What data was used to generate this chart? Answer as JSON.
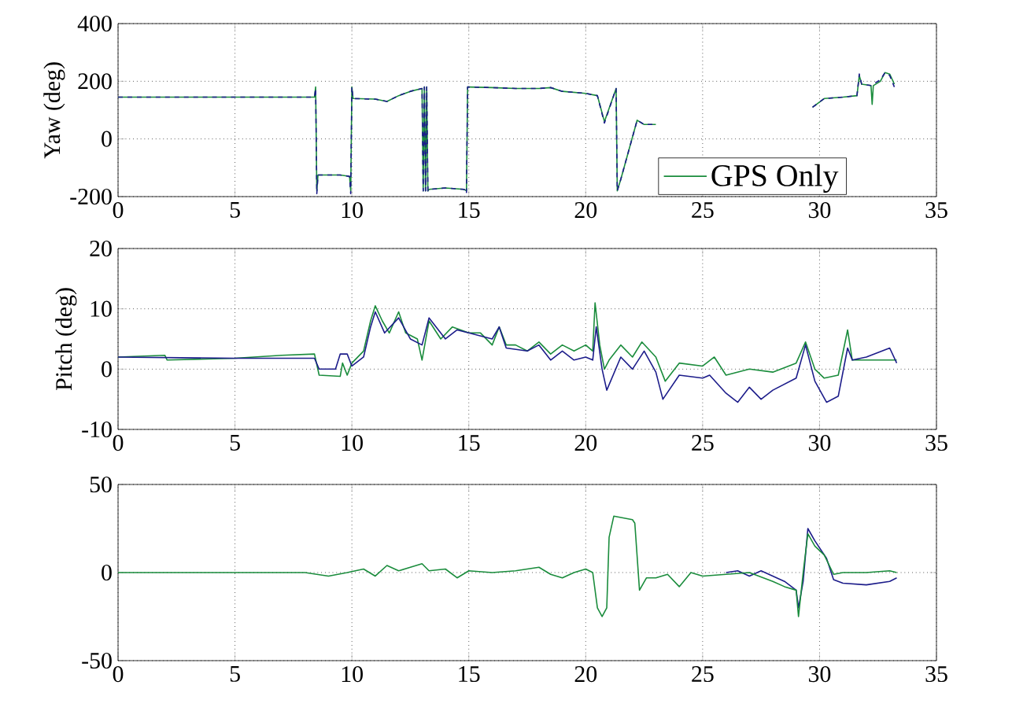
{
  "chart_data": [
    {
      "type": "line",
      "ylabel": "Yaw (deg)",
      "xlim": [
        0,
        35
      ],
      "ylim": [
        -200,
        400
      ],
      "xticks": [
        0,
        5,
        10,
        15,
        20,
        25,
        30,
        35
      ],
      "yticks": [
        -200,
        0,
        200,
        400
      ],
      "grid": true,
      "legend": "bottom right",
      "series": [
        {
          "name": "GPS Only",
          "color": "#1a8c3c",
          "line_style": "solid",
          "x": [
            0,
            8.4,
            8.45,
            8.5,
            8.55,
            9.5,
            9.9,
            9.95,
            10.0,
            10.05,
            11,
            11.5,
            12,
            12.5,
            13.0,
            13.05,
            13.1,
            13.15,
            13.2,
            13.25,
            13.3,
            14,
            14.8,
            14.9,
            14.95,
            15.0,
            16,
            17,
            18,
            18.5,
            19,
            20,
            20.5,
            20.8,
            21.3,
            21.35,
            21.5,
            22.2,
            22.5,
            23.0,
            26,
            29.7,
            30.2,
            31,
            31.6,
            31.7,
            31.8,
            32.2,
            32.25,
            32.3,
            32.6,
            32.8,
            33.0,
            33.2
          ],
          "values": [
            145,
            145,
            180,
            -180,
            -125,
            -125,
            -130,
            -180,
            180,
            140,
            138,
            130,
            150,
            165,
            175,
            -180,
            180,
            -180,
            180,
            -180,
            -175,
            -170,
            -175,
            -180,
            180,
            180,
            178,
            175,
            175,
            178,
            165,
            158,
            150,
            60,
            175,
            -180,
            -140,
            65,
            50,
            50,
            null,
            110,
            140,
            145,
            150,
            220,
            190,
            185,
            120,
            185,
            200,
            230,
            225,
            190
          ]
        },
        {
          "color": "#1c1c8a",
          "line_style": "dashed",
          "x": [
            0,
            8.4,
            8.45,
            8.5,
            8.55,
            9.5,
            9.9,
            9.95,
            10.0,
            10.05,
            11,
            11.5,
            12,
            12.5,
            13.0,
            13.05,
            13.1,
            13.15,
            13.2,
            13.25,
            13.3,
            14,
            14.8,
            14.9,
            14.95,
            15.0,
            16,
            17,
            18,
            18.5,
            19,
            20,
            20.5,
            20.8,
            21.3,
            21.35,
            21.5,
            22.2,
            22.5,
            23.0,
            26,
            29.7,
            30.2,
            31,
            31.6,
            31.7,
            31.8,
            32.2,
            32.6,
            32.8,
            33.0,
            33.2
          ],
          "values": [
            145,
            145,
            175,
            -190,
            -125,
            -125,
            -130,
            -190,
            180,
            140,
            138,
            130,
            150,
            165,
            175,
            -180,
            180,
            -180,
            180,
            -180,
            -175,
            -170,
            -175,
            -190,
            180,
            180,
            178,
            175,
            175,
            178,
            165,
            158,
            150,
            55,
            175,
            -180,
            -140,
            65,
            50,
            50,
            null,
            110,
            140,
            145,
            150,
            225,
            190,
            185,
            205,
            230,
            220,
            180
          ]
        }
      ]
    },
    {
      "type": "line",
      "ylabel": "Pitch (deg)",
      "xlim": [
        0,
        35
      ],
      "ylim": [
        -10,
        20
      ],
      "xticks": [
        0,
        5,
        10,
        15,
        20,
        25,
        30,
        35
      ],
      "yticks": [
        -10,
        0,
        10,
        20
      ],
      "grid": true,
      "series": [
        {
          "color": "#1a8c3c",
          "x": [
            0,
            2,
            2.1,
            5,
            7,
            8.4,
            8.6,
            9.5,
            9.6,
            9.8,
            10,
            10.5,
            10.8,
            11,
            11.3,
            11.6,
            12,
            12.3,
            12.8,
            13,
            13.3,
            13.8,
            14.3,
            15,
            15.5,
            16,
            16.3,
            16.6,
            17,
            17.5,
            18,
            18.5,
            19,
            19.5,
            20,
            20.3,
            20.4,
            20.6,
            20.8,
            21,
            21.5,
            22,
            22.4,
            23,
            23.4,
            24,
            25,
            25.5,
            26,
            27,
            28,
            29,
            29.4,
            29.8,
            30.2,
            30.8,
            31.2,
            31.4,
            32,
            33,
            33.3
          ],
          "values": [
            2,
            2.3,
            1.5,
            1.8,
            2.3,
            2.5,
            -1,
            -1.2,
            1,
            -1,
            1,
            3,
            8,
            10.5,
            8,
            6,
            9.5,
            6,
            5,
            1.5,
            8,
            5,
            7,
            6,
            6,
            4,
            7,
            4,
            4,
            3,
            4.5,
            2.5,
            4,
            3,
            4,
            3,
            11,
            4,
            0,
            1.5,
            4,
            2,
            4.5,
            2,
            -2,
            1,
            0.5,
            2,
            -1,
            0,
            -0.5,
            1,
            4.5,
            0,
            -1.5,
            -1,
            6.5,
            1.5,
            1.5,
            1.5,
            1.5
          ]
        },
        {
          "color": "#1c1c8a",
          "x": [
            0,
            5,
            8.4,
            8.6,
            9.3,
            9.5,
            9.8,
            10,
            10.5,
            10.8,
            11,
            11.4,
            12,
            12.5,
            13,
            13.3,
            14,
            14.5,
            15,
            16,
            16.3,
            16.6,
            17.5,
            18,
            18.5,
            19,
            19.5,
            20,
            20.3,
            20.45,
            20.7,
            20.9,
            21.5,
            22,
            22.5,
            23,
            23.3,
            24,
            25,
            25.3,
            26,
            26.5,
            27,
            27.5,
            28,
            29,
            29.4,
            29.8,
            30.3,
            30.8,
            31.2,
            31.4,
            32,
            33,
            33.3
          ],
          "values": [
            2,
            1.8,
            1.8,
            0,
            0,
            2.5,
            2.5,
            0.5,
            2,
            7,
            9.5,
            6,
            8.5,
            5,
            4,
            8.5,
            5,
            6.5,
            6,
            5,
            7,
            3.5,
            3,
            4,
            1.5,
            3,
            1.5,
            2,
            1.5,
            7,
            0,
            -3.5,
            2,
            0,
            3,
            -0.5,
            -5,
            -1,
            -1.5,
            -1,
            -4,
            -5.5,
            -3,
            -5,
            -3.5,
            -1.5,
            4,
            -2,
            -5.5,
            -4.5,
            3.5,
            1.5,
            2,
            3.5,
            1
          ]
        }
      ]
    },
    {
      "type": "line",
      "xlim": [
        0,
        35
      ],
      "ylim": [
        -50,
        50
      ],
      "xticks": [
        0,
        5,
        10,
        15,
        20,
        25,
        30,
        35
      ],
      "yticks": [
        -50,
        0,
        50
      ],
      "grid": true,
      "series": [
        {
          "color": "#1c1c8a",
          "x": [
            26,
            26.5,
            27,
            27.5,
            28,
            28.5,
            29,
            29.1,
            29.3,
            29.5,
            29.8,
            30.3,
            30.6,
            31,
            32,
            33,
            33.3
          ],
          "values": [
            0,
            1,
            -2,
            1,
            -2,
            -5,
            -10,
            -20,
            -5,
            25,
            18,
            8,
            -4,
            -6,
            -7,
            -5,
            -3
          ]
        },
        {
          "color": "#1a8c3c",
          "x": [
            0,
            8,
            9,
            9.8,
            10.5,
            11,
            11.5,
            12,
            12.5,
            13,
            13.3,
            14,
            14.5,
            15,
            16,
            17,
            18,
            18.5,
            19,
            19.5,
            20,
            20.3,
            20.5,
            20.7,
            20.9,
            21,
            21.2,
            22,
            22.1,
            22.3,
            22.6,
            23,
            23.5,
            24,
            24.5,
            25,
            26,
            27,
            28,
            28.5,
            29,
            29.1,
            29.3,
            29.5,
            29.8,
            30.2,
            30.6,
            31,
            32,
            33,
            33.3
          ],
          "values": [
            0,
            0,
            -2,
            0,
            2,
            -2,
            4,
            1,
            3,
            5,
            1,
            2,
            -3,
            1,
            0,
            1,
            3,
            -1,
            -3,
            0,
            2,
            0,
            -20,
            -25,
            -20,
            20,
            32,
            30,
            28,
            -10,
            -3,
            -3,
            -1,
            -8,
            0,
            -2,
            -1,
            0,
            -5,
            -8,
            -10,
            -25,
            0,
            22,
            15,
            10,
            -1,
            0,
            0,
            1,
            0
          ]
        }
      ]
    }
  ]
}
